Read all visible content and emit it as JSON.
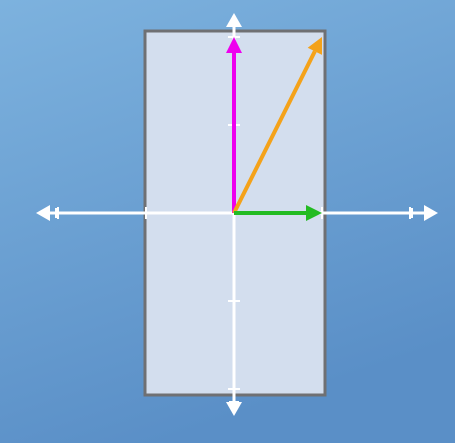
{
  "scene": {
    "background_top": "#7db2de",
    "background_bottom": "#5a8fc7",
    "panel_fill": "#d3deee",
    "panel_border": "#6f7073",
    "axis_color": "#ffffff"
  },
  "vectors": [
    {
      "name": "magenta-vector",
      "color": "#ee00ee",
      "dx": 0,
      "dy": 2
    },
    {
      "name": "orange-vector",
      "color": "#f4a21a",
      "dx": 1,
      "dy": 2
    },
    {
      "name": "green-vector",
      "color": "#22bb22",
      "dx": 1,
      "dy": 0
    }
  ]
}
